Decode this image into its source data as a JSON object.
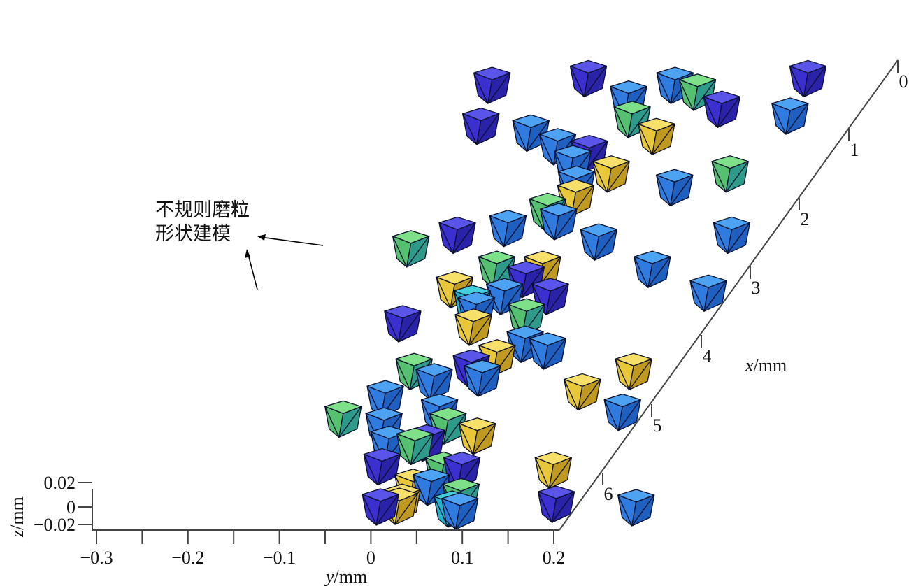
{
  "chart_data": {
    "type": "scatter",
    "title": "",
    "annotation_lines": [
      "不规则磨粒",
      "形状建模"
    ],
    "x_axis": {
      "label_var": "x",
      "label_unit": "/mm",
      "ticks": [
        "0",
        "1",
        "2",
        "3",
        "4",
        "5",
        "6"
      ],
      "range": [
        0,
        6.5
      ]
    },
    "y_axis": {
      "label_var": "y",
      "label_unit": "/mm",
      "ticks": [
        "−0.3",
        "−0.2",
        "−0.1",
        "0",
        "0.1",
        "0.2"
      ],
      "range": [
        -0.3,
        0.2
      ]
    },
    "z_axis": {
      "label_var": "z",
      "label_unit": "/mm",
      "ticks": [
        "0.02",
        "0",
        "−0.02"
      ],
      "range": [
        -0.02,
        0.02
      ]
    },
    "colors": {
      "blue": "#3a8fe8",
      "indigo": "#4a3fd8",
      "cyan": "#2fc0d0",
      "green": "#5ecf7a",
      "yellow": "#f2d64a"
    },
    "grains": [
      {
        "x": 0.05,
        "y": 0.2,
        "color": "indigo"
      },
      {
        "x": -0.02,
        "y": 0.09,
        "color": "cyan"
      },
      {
        "x": -0.05,
        "y": 0.1,
        "color": "blue"
      },
      {
        "x": 0.02,
        "y": 0.03,
        "color": "yellow"
      },
      {
        "x": 0.08,
        "y": 0.03,
        "color": "yellow"
      },
      {
        "x": 0.01,
        "y": 0.01,
        "color": "indigo"
      },
      {
        "x": 0.16,
        "y": 0.09,
        "color": "green"
      },
      {
        "x": 0.55,
        "y": 0.05,
        "color": "green"
      },
      {
        "x": 0.3,
        "y": 0.03,
        "color": "yellow"
      },
      {
        "x": 0.3,
        "y": 0.05,
        "color": "blue"
      },
      {
        "x": 0.6,
        "y": -0.02,
        "color": "indigo"
      },
      {
        "x": 0.55,
        "y": 0.07,
        "color": "indigo"
      },
      {
        "x": 0.9,
        "y": 0.0,
        "color": "green"
      },
      {
        "x": 0.93,
        "y": -0.03,
        "color": "blue"
      },
      {
        "x": 1.2,
        "y": -0.05,
        "color": "blue"
      },
      {
        "x": 1.3,
        "y": -0.1,
        "color": "green"
      },
      {
        "x": 0.95,
        "y": 0.01,
        "color": "indigo"
      },
      {
        "x": 1.05,
        "y": 0.06,
        "color": "yellow"
      },
      {
        "x": 1.4,
        "y": 0.0,
        "color": "blue"
      },
      {
        "x": 1.6,
        "y": -0.07,
        "color": "blue"
      },
      {
        "x": 1.85,
        "y": -0.03,
        "color": "blue"
      },
      {
        "x": 2.0,
        "y": -0.06,
        "color": "green"
      },
      {
        "x": 1.2,
        "y": 0.02,
        "color": "green"
      },
      {
        "x": 2.05,
        "y": 0.0,
        "color": "indigo"
      },
      {
        "x": 1.9,
        "y": 0.02,
        "color": "blue"
      },
      {
        "x": 2.2,
        "y": 0.02,
        "color": "yellow"
      },
      {
        "x": 2.3,
        "y": 0.07,
        "color": "blue"
      },
      {
        "x": 1.7,
        "y": 0.14,
        "color": "yellow"
      },
      {
        "x": 2.4,
        "y": 0.04,
        "color": "blue"
      },
      {
        "x": 2.65,
        "y": -0.03,
        "color": "yellow"
      },
      {
        "x": 2.7,
        "y": -0.11,
        "color": "indigo"
      },
      {
        "x": 2.8,
        "y": 0.02,
        "color": "green"
      },
      {
        "x": 3.0,
        "y": -0.05,
        "color": "cyan"
      },
      {
        "x": 3.1,
        "y": -0.02,
        "color": "blue"
      },
      {
        "x": 3.2,
        "y": -0.08,
        "color": "yellow"
      },
      {
        "x": 2.9,
        "y": -0.04,
        "color": "blue"
      },
      {
        "x": 3.5,
        "y": -0.05,
        "color": "green"
      },
      {
        "x": 3.5,
        "y": 0.0,
        "color": "yellow"
      },
      {
        "x": 3.1,
        "y": 0.03,
        "color": "indigo"
      },
      {
        "x": 3.35,
        "y": -0.01,
        "color": "indigo"
      },
      {
        "x": 3.9,
        "y": 0.04,
        "color": "blue"
      },
      {
        "x": 4.2,
        "y": -0.02,
        "color": "blue"
      },
      {
        "x": 3.8,
        "y": -0.16,
        "color": "green"
      },
      {
        "x": 4.0,
        "y": -0.12,
        "color": "indigo"
      },
      {
        "x": 4.1,
        "y": -0.07,
        "color": "blue"
      },
      {
        "x": 4.35,
        "y": -0.04,
        "color": "green"
      },
      {
        "x": 4.55,
        "y": -0.02,
        "color": "yellow"
      },
      {
        "x": 4.75,
        "y": -0.03,
        "color": "blue"
      },
      {
        "x": 4.9,
        "y": 0.0,
        "color": "yellow"
      },
      {
        "x": 5.05,
        "y": -0.05,
        "color": "blue"
      },
      {
        "x": 5.2,
        "y": -0.04,
        "color": "indigo"
      },
      {
        "x": 4.7,
        "y": 0.08,
        "color": "blue"
      },
      {
        "x": 4.9,
        "y": 0.13,
        "color": "green"
      },
      {
        "x": 5.3,
        "y": -0.08,
        "color": "blue"
      },
      {
        "x": 5.5,
        "y": -0.12,
        "color": "blue"
      },
      {
        "x": 5.6,
        "y": -0.18,
        "color": "indigo"
      },
      {
        "x": 5.45,
        "y": 0.02,
        "color": "yellow"
      },
      {
        "x": 5.7,
        "y": -0.02,
        "color": "green"
      },
      {
        "x": 5.85,
        "y": 0.07,
        "color": "indigo"
      },
      {
        "x": 5.75,
        "y": 0.15,
        "color": "blue"
      },
      {
        "x": 6.0,
        "y": -0.04,
        "color": "blue"
      },
      {
        "x": 6.1,
        "y": 0.03,
        "color": "green"
      },
      {
        "x": 6.2,
        "y": 0.0,
        "color": "blue"
      },
      {
        "x": 6.3,
        "y": -0.1,
        "color": "indigo"
      },
      {
        "x": 6.2,
        "y": -0.2,
        "color": "indigo"
      },
      {
        "x": 6.3,
        "y": 0.14,
        "color": "indigo"
      },
      {
        "x": 4.0,
        "y": 0.18,
        "color": "blue"
      },
      {
        "x": 3.15,
        "y": 0.2,
        "color": "blue"
      },
      {
        "x": 2.0,
        "y": 0.18,
        "color": "yellow"
      },
      {
        "x": 1.4,
        "y": 0.2,
        "color": "blue"
      },
      {
        "x": 0.55,
        "y": 0.17,
        "color": "yellow"
      },
      {
        "x": 0.0,
        "y": 0.29,
        "color": "blue"
      },
      {
        "x": 3.5,
        "y": 0.12,
        "color": "blue"
      }
    ]
  }
}
